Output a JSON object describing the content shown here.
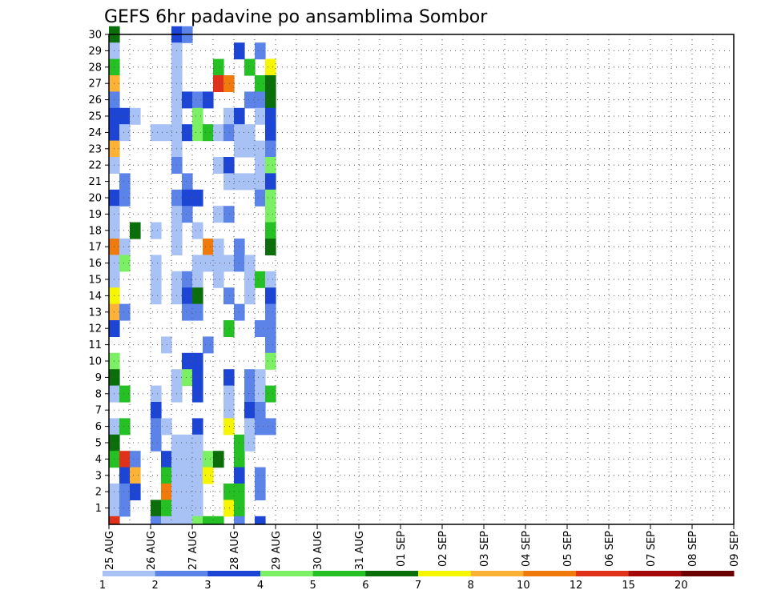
{
  "chart_data": {
    "type": "heatmap",
    "title": "GEFS 6hr padavine po ansamblima Sombor",
    "xlabel": "",
    "ylabel": "",
    "x_ticks": [
      "25 AUG",
      "26 AUG",
      "27 AUG",
      "28 AUG",
      "29 AUG",
      "30 AUG",
      "31 AUG",
      "01 SEP",
      "02 SEP",
      "03 SEP",
      "04 SEP",
      "05 SEP",
      "06 SEP",
      "07 SEP",
      "08 SEP",
      "09 SEP"
    ],
    "y_ticks": [
      1,
      2,
      3,
      4,
      5,
      6,
      7,
      8,
      9,
      10,
      11,
      12,
      13,
      14,
      15,
      16,
      17,
      18,
      19,
      20,
      21,
      22,
      23,
      24,
      25,
      26,
      27,
      28,
      29,
      30
    ],
    "ylim": [
      0,
      30
    ],
    "time_step_hours": 6,
    "steps_per_day": 4,
    "grid": true,
    "colorbar": {
      "labels": [
        "1",
        "2",
        "3",
        "4",
        "5",
        "6",
        "7",
        "8",
        "10",
        "12",
        "15",
        "20"
      ],
      "colors": [
        "#a9c2f5",
        "#5c84e8",
        "#1c45d6",
        "#7cf064",
        "#24c024",
        "#0a6e0a",
        "#f6f600",
        "#fbb236",
        "#f07a0c",
        "#e0321a",
        "#a40808",
        "#6a0000"
      ]
    },
    "cells": [
      [
        0,
        30,
        5
      ],
      [
        0,
        29,
        0
      ],
      [
        0,
        28,
        4
      ],
      [
        0,
        27,
        7
      ],
      [
        0,
        26,
        1
      ],
      [
        0,
        25,
        2
      ],
      [
        0,
        24,
        2
      ],
      [
        0,
        23,
        7
      ],
      [
        0,
        22,
        0
      ],
      [
        0,
        20,
        2
      ],
      [
        0,
        19,
        0
      ],
      [
        0,
        18,
        0
      ],
      [
        0,
        17,
        8
      ],
      [
        0,
        16,
        0
      ],
      [
        0,
        15,
        0
      ],
      [
        0,
        14,
        6
      ],
      [
        0,
        13,
        7
      ],
      [
        0,
        12,
        2
      ],
      [
        0,
        10,
        3
      ],
      [
        0,
        9,
        5
      ],
      [
        0,
        8,
        0
      ],
      [
        0,
        6,
        0
      ],
      [
        0,
        5,
        5
      ],
      [
        0,
        4,
        4
      ],
      [
        0,
        2,
        0
      ],
      [
        0,
        1,
        0
      ],
      [
        0,
        0,
        9
      ],
      [
        1,
        25,
        2
      ],
      [
        1,
        24,
        0
      ],
      [
        1,
        21,
        1
      ],
      [
        1,
        20,
        1
      ],
      [
        1,
        17,
        0
      ],
      [
        1,
        16,
        3
      ],
      [
        1,
        13,
        1
      ],
      [
        1,
        8,
        4
      ],
      [
        1,
        6,
        4
      ],
      [
        1,
        4,
        9
      ],
      [
        1,
        3,
        2
      ],
      [
        1,
        2,
        1
      ],
      [
        1,
        1,
        1
      ],
      [
        2,
        25,
        0
      ],
      [
        2,
        18,
        5
      ],
      [
        2,
        4,
        1
      ],
      [
        2,
        3,
        7
      ],
      [
        2,
        2,
        2
      ],
      [
        4,
        24,
        0
      ],
      [
        4,
        18,
        0
      ],
      [
        4,
        16,
        0
      ],
      [
        4,
        15,
        0
      ],
      [
        4,
        14,
        0
      ],
      [
        4,
        8,
        0
      ],
      [
        4,
        7,
        2
      ],
      [
        4,
        6,
        1
      ],
      [
        4,
        5,
        1
      ],
      [
        4,
        1,
        5
      ],
      [
        4,
        0,
        1
      ],
      [
        5,
        24,
        0
      ],
      [
        5,
        11,
        0
      ],
      [
        5,
        6,
        0
      ],
      [
        5,
        4,
        2
      ],
      [
        5,
        3,
        4
      ],
      [
        5,
        2,
        8
      ],
      [
        5,
        1,
        4
      ],
      [
        5,
        0,
        0
      ],
      [
        6,
        30,
        2
      ],
      [
        6,
        29,
        0
      ],
      [
        6,
        28,
        0
      ],
      [
        6,
        27,
        0
      ],
      [
        6,
        26,
        0
      ],
      [
        6,
        25,
        0
      ],
      [
        6,
        24,
        0
      ],
      [
        6,
        23,
        0
      ],
      [
        6,
        22,
        1
      ],
      [
        6,
        20,
        1
      ],
      [
        6,
        19,
        0
      ],
      [
        6,
        18,
        0
      ],
      [
        6,
        17,
        0
      ],
      [
        6,
        15,
        0
      ],
      [
        6,
        14,
        0
      ],
      [
        6,
        9,
        0
      ],
      [
        6,
        8,
        0
      ],
      [
        6,
        5,
        0
      ],
      [
        6,
        4,
        0
      ],
      [
        6,
        3,
        0
      ],
      [
        6,
        2,
        0
      ],
      [
        6,
        1,
        0
      ],
      [
        6,
        0,
        0
      ],
      [
        7,
        30,
        1
      ],
      [
        7,
        26,
        2
      ],
      [
        7,
        24,
        2
      ],
      [
        7,
        21,
        1
      ],
      [
        7,
        20,
        2
      ],
      [
        7,
        19,
        1
      ],
      [
        7,
        15,
        1
      ],
      [
        7,
        14,
        2
      ],
      [
        7,
        13,
        1
      ],
      [
        7,
        10,
        2
      ],
      [
        7,
        9,
        3
      ],
      [
        7,
        5,
        0
      ],
      [
        7,
        4,
        0
      ],
      [
        7,
        3,
        0
      ],
      [
        7,
        2,
        0
      ],
      [
        7,
        1,
        0
      ],
      [
        7,
        0,
        0
      ],
      [
        8,
        26,
        1
      ],
      [
        8,
        25,
        3
      ],
      [
        8,
        24,
        3
      ],
      [
        8,
        20,
        2
      ],
      [
        8,
        18,
        0
      ],
      [
        8,
        16,
        0
      ],
      [
        8,
        15,
        0
      ],
      [
        8,
        14,
        5
      ],
      [
        8,
        13,
        1
      ],
      [
        8,
        10,
        2
      ],
      [
        8,
        9,
        2
      ],
      [
        8,
        8,
        2
      ],
      [
        8,
        6,
        2
      ],
      [
        8,
        5,
        0
      ],
      [
        8,
        4,
        0
      ],
      [
        8,
        3,
        0
      ],
      [
        8,
        2,
        0
      ],
      [
        8,
        1,
        0
      ],
      [
        8,
        0,
        3
      ],
      [
        9,
        26,
        2
      ],
      [
        9,
        24,
        4
      ],
      [
        9,
        17,
        8
      ],
      [
        9,
        16,
        0
      ],
      [
        9,
        11,
        1
      ],
      [
        9,
        4,
        3
      ],
      [
        9,
        3,
        6
      ],
      [
        9,
        0,
        4
      ],
      [
        10,
        28,
        4
      ],
      [
        10,
        27,
        9
      ],
      [
        10,
        24,
        0
      ],
      [
        10,
        22,
        0
      ],
      [
        10,
        19,
        0
      ],
      [
        10,
        17,
        0
      ],
      [
        10,
        16,
        0
      ],
      [
        10,
        15,
        0
      ],
      [
        10,
        4,
        5
      ],
      [
        10,
        0,
        4
      ],
      [
        11,
        27,
        8
      ],
      [
        11,
        25,
        0
      ],
      [
        11,
        24,
        1
      ],
      [
        11,
        22,
        2
      ],
      [
        11,
        21,
        0
      ],
      [
        11,
        19,
        1
      ],
      [
        11,
        16,
        0
      ],
      [
        11,
        14,
        1
      ],
      [
        11,
        12,
        4
      ],
      [
        11,
        9,
        2
      ],
      [
        11,
        8,
        0
      ],
      [
        11,
        7,
        0
      ],
      [
        11,
        6,
        6
      ],
      [
        11,
        2,
        4
      ],
      [
        11,
        1,
        6
      ],
      [
        12,
        29,
        2
      ],
      [
        12,
        25,
        2
      ],
      [
        12,
        24,
        0
      ],
      [
        12,
        23,
        0
      ],
      [
        12,
        21,
        0
      ],
      [
        12,
        17,
        1
      ],
      [
        12,
        16,
        1
      ],
      [
        12,
        13,
        1
      ],
      [
        12,
        5,
        4
      ],
      [
        12,
        4,
        4
      ],
      [
        12,
        3,
        2
      ],
      [
        12,
        2,
        4
      ],
      [
        12,
        1,
        4
      ],
      [
        12,
        0,
        1
      ],
      [
        13,
        28,
        4
      ],
      [
        13,
        26,
        1
      ],
      [
        13,
        24,
        0
      ],
      [
        13,
        23,
        0
      ],
      [
        13,
        21,
        0
      ],
      [
        13,
        16,
        0
      ],
      [
        13,
        15,
        0
      ],
      [
        13,
        14,
        0
      ],
      [
        13,
        9,
        1
      ],
      [
        13,
        8,
        1
      ],
      [
        13,
        7,
        2
      ],
      [
        13,
        6,
        0
      ],
      [
        13,
        5,
        0
      ],
      [
        14,
        29,
        1
      ],
      [
        14,
        27,
        4
      ],
      [
        14,
        26,
        1
      ],
      [
        14,
        25,
        0
      ],
      [
        14,
        23,
        0
      ],
      [
        14,
        22,
        0
      ],
      [
        14,
        21,
        0
      ],
      [
        14,
        20,
        1
      ],
      [
        14,
        15,
        4
      ],
      [
        14,
        12,
        1
      ],
      [
        14,
        9,
        0
      ],
      [
        14,
        8,
        0
      ],
      [
        14,
        7,
        1
      ],
      [
        14,
        6,
        1
      ],
      [
        14,
        3,
        1
      ],
      [
        14,
        2,
        1
      ],
      [
        14,
        0,
        2
      ],
      [
        15,
        28,
        6
      ],
      [
        15,
        27,
        5
      ],
      [
        15,
        26,
        5
      ],
      [
        15,
        25,
        2
      ],
      [
        15,
        24,
        2
      ],
      [
        15,
        23,
        1
      ],
      [
        15,
        22,
        3
      ],
      [
        15,
        21,
        2
      ],
      [
        15,
        20,
        3
      ],
      [
        15,
        19,
        3
      ],
      [
        15,
        18,
        4
      ],
      [
        15,
        17,
        5
      ],
      [
        15,
        15,
        0
      ],
      [
        15,
        14,
        2
      ],
      [
        15,
        13,
        1
      ],
      [
        15,
        12,
        1
      ],
      [
        15,
        11,
        1
      ],
      [
        15,
        10,
        3
      ],
      [
        15,
        8,
        4
      ],
      [
        15,
        6,
        1
      ]
    ]
  }
}
